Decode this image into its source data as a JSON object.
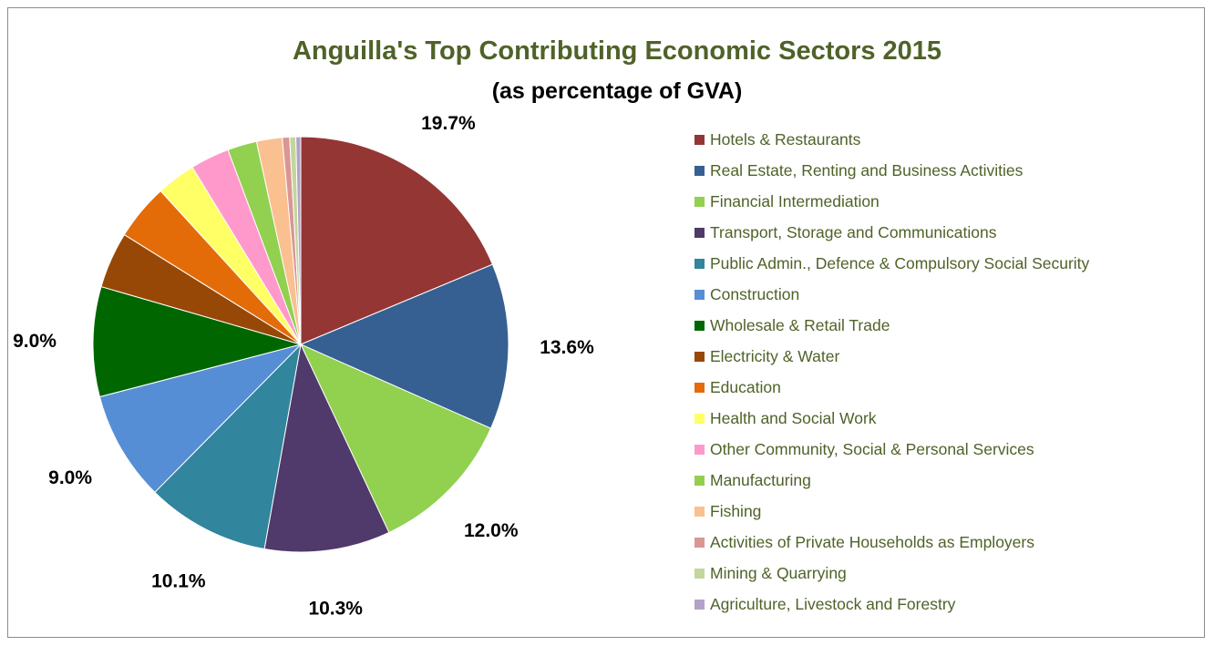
{
  "chart_data": {
    "type": "pie",
    "title": "Anguilla's Top Contributing Economic Sectors 2015",
    "subtitle": "(as percentage of GVA)",
    "legend_position": "right",
    "slices": [
      {
        "name": "Hotels & Restaurants",
        "value": 19.7,
        "label": "19.7%",
        "color": "#943634"
      },
      {
        "name": "Real Estate, Renting and Business Activities",
        "value": 13.6,
        "label": "13.6%",
        "color": "#366092"
      },
      {
        "name": "Financial Intermediation",
        "value": 12.0,
        "label": "12.0%",
        "color": "#92d050"
      },
      {
        "name": "Transport, Storage and Communications",
        "value": 10.3,
        "label": "10.3%",
        "color": "#4f3a6b"
      },
      {
        "name": "Public Admin., Defence & Compulsory Social Security",
        "value": 10.1,
        "label": "10.1%",
        "color": "#31859c"
      },
      {
        "name": "Construction",
        "value": 9.0,
        "label": "9.0%",
        "color": "#558ed5"
      },
      {
        "name": "Wholesale & Retail Trade",
        "value": 9.0,
        "label": "9.0%",
        "color": "#006600"
      },
      {
        "name": "Electricity & Water",
        "value": 4.6,
        "label": "",
        "color": "#974806"
      },
      {
        "name": "Education",
        "value": 4.6,
        "label": "",
        "color": "#e36c09"
      },
      {
        "name": "Health and Social Work",
        "value": 3.2,
        "label": "",
        "color": "#ffff66"
      },
      {
        "name": "Other Community, Social & Personal Services",
        "value": 3.2,
        "label": "",
        "color": "#ff99cc"
      },
      {
        "name": "Manufacturing",
        "value": 2.4,
        "label": "",
        "color": "#92d050"
      },
      {
        "name": "Fishing",
        "value": 2.1,
        "label": "",
        "color": "#fac090"
      },
      {
        "name": "Activities of Private Households as Employers",
        "value": 0.6,
        "label": "",
        "color": "#d99694"
      },
      {
        "name": "Mining & Quarrying",
        "value": 0.5,
        "label": "",
        "color": "#c3d69b"
      },
      {
        "name": "Agriculture, Livestock and Forestry",
        "value": 0.4,
        "label": "",
        "color": "#b3a2c7"
      }
    ]
  }
}
